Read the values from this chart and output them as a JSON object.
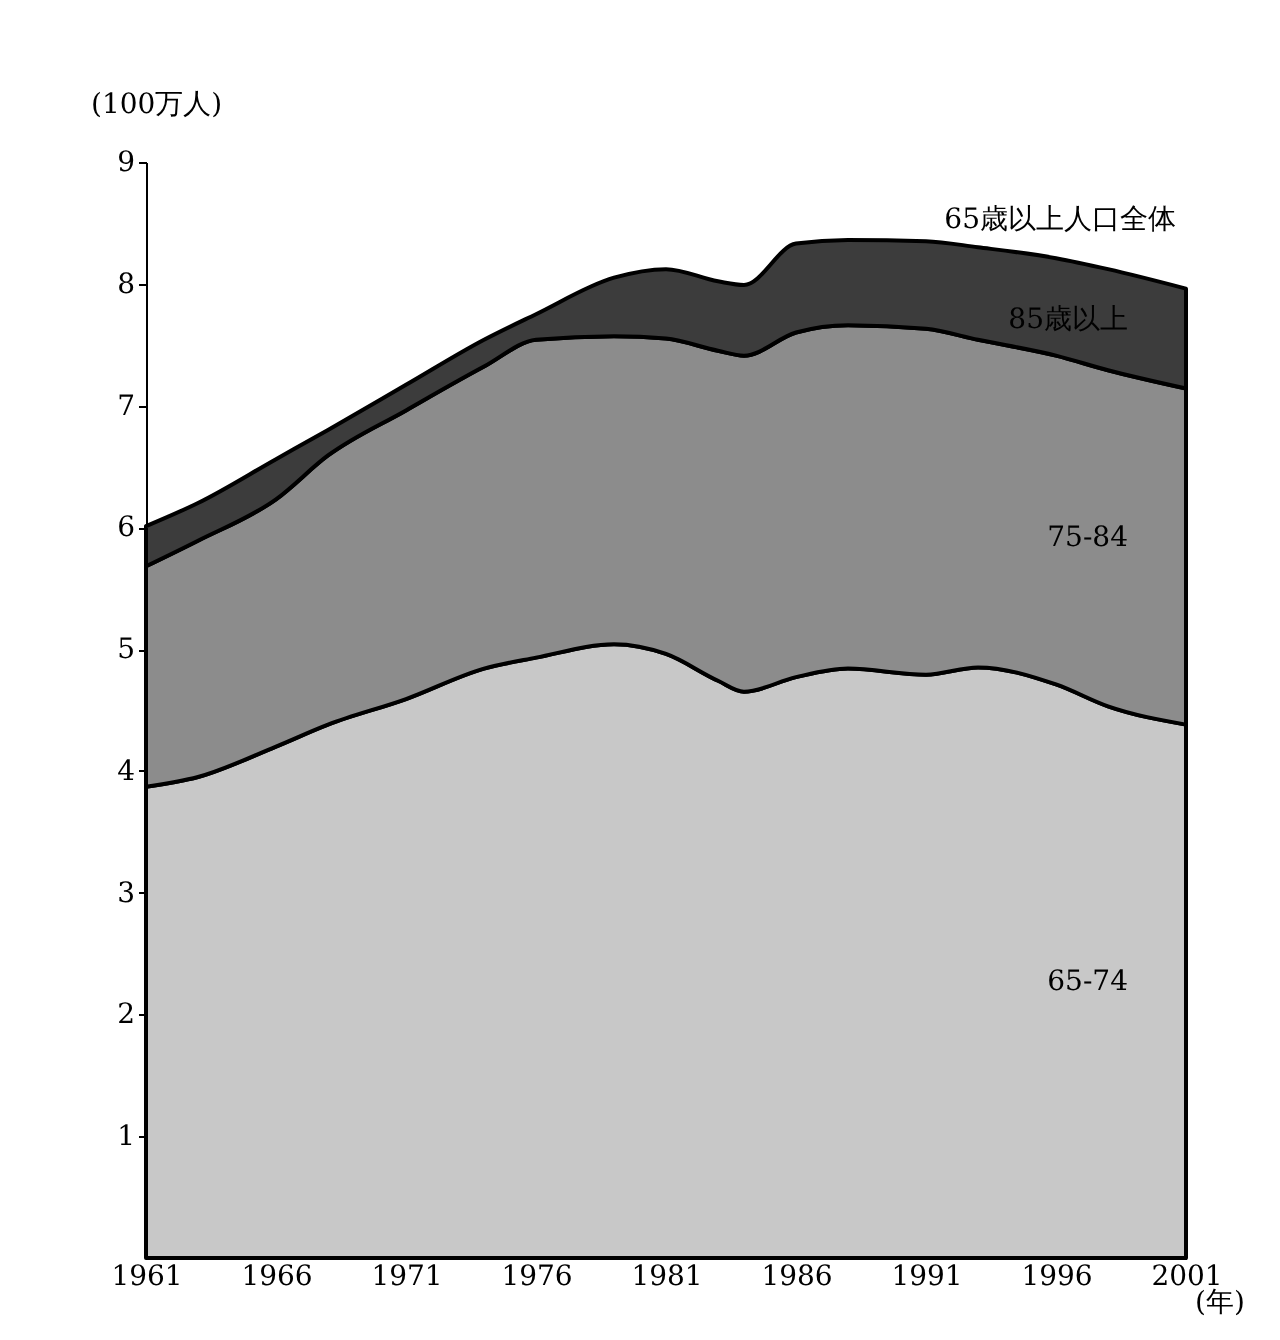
{
  "chart_data": {
    "type": "area",
    "stacked": true,
    "ylabel": "(100万人)",
    "xlabel": "(年)",
    "annotations": [
      "65歳以上人口全体"
    ],
    "x": [
      1961,
      1963,
      1966,
      1968,
      1971,
      1974,
      1976,
      1979,
      1981,
      1983,
      1984,
      1986,
      1988,
      1991,
      1993,
      1996,
      1998,
      2001
    ],
    "series": [
      {
        "name": "65-74",
        "color": "#c8c8c8",
        "values": [
          3.87,
          3.95,
          4.2,
          4.38,
          4.59,
          4.84,
          4.93,
          5.04,
          4.96,
          4.74,
          4.65,
          4.77,
          4.84,
          4.79,
          4.85,
          4.71,
          4.53,
          4.38
        ]
      },
      {
        "name": "75-84",
        "color": "#8c8c8c",
        "values": [
          1.81,
          1.94,
          2.03,
          2.21,
          2.37,
          2.48,
          2.61,
          2.53,
          2.59,
          2.71,
          2.76,
          2.83,
          2.82,
          2.84,
          2.69,
          2.7,
          2.76,
          2.76
        ]
      },
      {
        "name": "85歳以上",
        "color": "#3c3c3c",
        "values": [
          0.33,
          0.31,
          0.33,
          0.21,
          0.21,
          0.22,
          0.21,
          0.48,
          0.57,
          0.57,
          0.58,
          0.73,
          0.7,
          0.72,
          0.76,
          0.8,
          0.83,
          0.82
        ]
      }
    ],
    "xlim": [
      1961,
      2001
    ],
    "xticks": [
      1961,
      1966,
      1971,
      1976,
      1981,
      1986,
      1991,
      1996,
      2001
    ],
    "ylim": [
      0,
      9
    ],
    "yticks": [
      1,
      2,
      3,
      4,
      5,
      6,
      7,
      8,
      9
    ],
    "grid": false,
    "legend": false
  }
}
